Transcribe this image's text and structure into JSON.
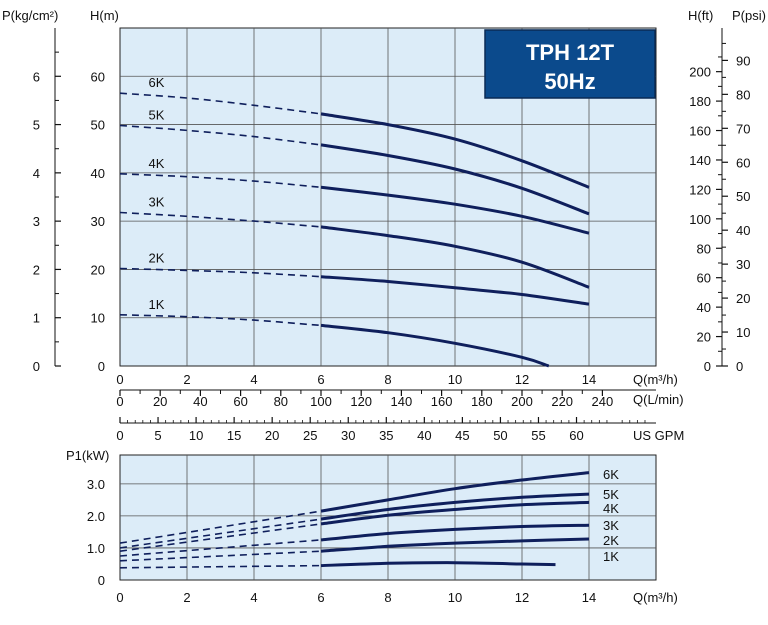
{
  "badge": {
    "model": "TPH 12T",
    "freq": "50Hz",
    "color": "#0b4a8c"
  },
  "colors": {
    "plot_bg": "#dcecf8",
    "curve": "#0f1f5c"
  },
  "chart_data": [
    {
      "type": "line",
      "title": "",
      "xlabel": "Q(m³/h)",
      "ylabel": "H(m)",
      "xlim": [
        0,
        16
      ],
      "ylim": [
        0,
        70
      ],
      "x_ticks": [
        "0",
        "2",
        "4",
        "6",
        "8",
        "10",
        "12",
        "14"
      ],
      "y_ticks": [
        "0",
        "10",
        "20",
        "30",
        "40",
        "50",
        "60"
      ],
      "secondary_axes": {
        "pressure_label": "P(kg/cm²)",
        "pressure_ticks": [
          "0",
          "1",
          "2",
          "3",
          "4",
          "5",
          "6"
        ],
        "hft_label": "H(ft)",
        "hft_ticks": [
          "0",
          "20",
          "40",
          "60",
          "80",
          "100",
          "120",
          "140",
          "160",
          "180",
          "200"
        ],
        "psi_label": "P(psi)",
        "psi_ticks": [
          "0",
          "10",
          "20",
          "30",
          "40",
          "50",
          "60",
          "70",
          "80",
          "90"
        ],
        "lmin_label": "Q(L/min)",
        "lmin_ticks": [
          "0",
          "20",
          "40",
          "60",
          "80",
          "100",
          "120",
          "140",
          "160",
          "180",
          "200",
          "220",
          "240"
        ],
        "gpm_label": "US GPM",
        "gpm_ticks": [
          "0",
          "5",
          "10",
          "15",
          "20",
          "25",
          "30",
          "35",
          "40",
          "45",
          "50",
          "55",
          "60"
        ]
      },
      "solid_from_x": 6,
      "series": [
        {
          "name": "6K",
          "x": [
            0,
            2,
            4,
            6,
            8,
            10,
            12,
            14
          ],
          "values": [
            56.5,
            55.5,
            54.0,
            52.2,
            50.0,
            47.0,
            42.5,
            37.0
          ]
        },
        {
          "name": "5K",
          "x": [
            0,
            2,
            4,
            6,
            8,
            10,
            12,
            14
          ],
          "values": [
            49.8,
            48.8,
            47.5,
            45.8,
            43.6,
            40.8,
            36.8,
            31.5
          ]
        },
        {
          "name": "4K",
          "x": [
            0,
            2,
            4,
            6,
            8,
            10,
            12,
            14
          ],
          "values": [
            39.8,
            39.2,
            38.3,
            37.0,
            35.4,
            33.5,
            31.0,
            27.5
          ]
        },
        {
          "name": "3K",
          "x": [
            0,
            2,
            4,
            6,
            8,
            10,
            12,
            14
          ],
          "values": [
            31.8,
            31.0,
            30.0,
            28.8,
            27.0,
            24.8,
            21.5,
            16.3
          ]
        },
        {
          "name": "2K",
          "x": [
            0,
            2,
            4,
            6,
            8,
            10,
            12,
            14
          ],
          "values": [
            20.2,
            19.8,
            19.3,
            18.5,
            17.5,
            16.2,
            14.8,
            12.8
          ]
        },
        {
          "name": "1K",
          "x": [
            0,
            2,
            4,
            6,
            8,
            10,
            12,
            12.8
          ],
          "values": [
            10.6,
            10.2,
            9.5,
            8.4,
            6.9,
            4.7,
            1.8,
            0
          ]
        }
      ]
    },
    {
      "type": "line",
      "title": "",
      "xlabel": "Q(m³/h)",
      "ylabel": "P1(kW)",
      "xlim": [
        0,
        16
      ],
      "ylim": [
        0,
        3.9
      ],
      "x_ticks": [
        "0",
        "2",
        "4",
        "6",
        "8",
        "10",
        "12",
        "14"
      ],
      "y_ticks": [
        "0",
        "1.0",
        "2.0",
        "3.0"
      ],
      "solid_from_x": 6,
      "series": [
        {
          "name": "6K",
          "x": [
            0,
            6,
            8,
            10,
            12,
            14
          ],
          "values": [
            1.15,
            2.15,
            2.5,
            2.85,
            3.12,
            3.35
          ]
        },
        {
          "name": "5K",
          "x": [
            0,
            6,
            8,
            10,
            12,
            14
          ],
          "values": [
            1.0,
            1.9,
            2.2,
            2.42,
            2.58,
            2.68
          ]
        },
        {
          "name": "4K",
          "x": [
            0,
            6,
            8,
            10,
            12,
            14
          ],
          "values": [
            0.9,
            1.75,
            2.02,
            2.2,
            2.35,
            2.42
          ]
        },
        {
          "name": "3K",
          "x": [
            0,
            6,
            8,
            10,
            12,
            14
          ],
          "values": [
            0.75,
            1.25,
            1.45,
            1.58,
            1.67,
            1.71
          ]
        },
        {
          "name": "2K",
          "x": [
            0,
            6,
            8,
            10,
            12,
            14
          ],
          "values": [
            0.6,
            0.9,
            1.05,
            1.15,
            1.22,
            1.28
          ]
        },
        {
          "name": "1K",
          "x": [
            0,
            6,
            8,
            10,
            12,
            13
          ],
          "values": [
            0.38,
            0.45,
            0.52,
            0.54,
            0.5,
            0.48
          ]
        }
      ]
    }
  ]
}
